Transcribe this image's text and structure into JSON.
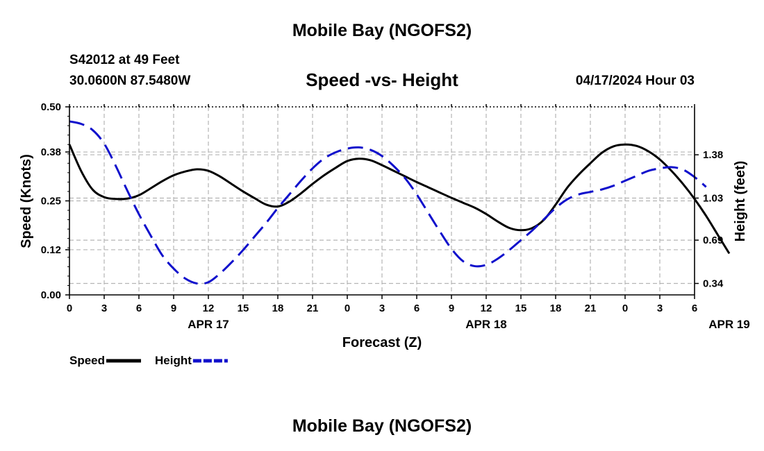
{
  "page": {
    "title": "Mobile Bay (NGOFS2)",
    "station": "S42012 at 49 Feet",
    "coordinates": "30.0600N  87.5480W",
    "datetime": "04/17/2024 Hour 03"
  },
  "chart_data": {
    "type": "line",
    "title": "Speed -vs- Height",
    "xlabel": "Forecast (Z)",
    "ylabel_left": "Speed (Knots)",
    "ylabel_right": "Height (feet)",
    "x_tick_labels": [
      "0",
      "3",
      "6",
      "9",
      "12",
      "15",
      "18",
      "21",
      "0",
      "3",
      "6",
      "9",
      "12",
      "15",
      "18",
      "21",
      "0",
      "3",
      "6"
    ],
    "date_labels": [
      {
        "label": "APR 17",
        "hour": 12
      },
      {
        "label": "APR 18",
        "hour": 36
      },
      {
        "label": "APR 19",
        "hour": 57
      }
    ],
    "x_range_hours": [
      0,
      54
    ],
    "ylim_left": [
      0,
      0.5
    ],
    "yticks_left": [
      "0.00",
      "0.12",
      "0.25",
      "0.38",
      "0.50"
    ],
    "ylim_right": [
      0.2475,
      1.7675
    ],
    "yticks_right": [
      "0.34",
      "0.69",
      "1.03",
      "1.38"
    ],
    "grid": true,
    "legend_position": "bottom-left",
    "series": [
      {
        "name": "Speed",
        "axis": "left",
        "color": "#000000",
        "style": "solid",
        "points": [
          [
            0,
            0.4
          ],
          [
            1,
            0.33
          ],
          [
            2,
            0.28
          ],
          [
            3,
            0.26
          ],
          [
            4,
            0.255
          ],
          [
            5,
            0.256
          ],
          [
            6,
            0.265
          ],
          [
            7,
            0.283
          ],
          [
            8,
            0.302
          ],
          [
            9,
            0.318
          ],
          [
            10,
            0.328
          ],
          [
            11,
            0.334
          ],
          [
            12,
            0.33
          ],
          [
            13,
            0.315
          ],
          [
            14,
            0.295
          ],
          [
            15,
            0.275
          ],
          [
            16,
            0.257
          ],
          [
            17,
            0.24
          ],
          [
            18,
            0.235
          ],
          [
            19,
            0.248
          ],
          [
            20,
            0.27
          ],
          [
            21,
            0.295
          ],
          [
            22,
            0.318
          ],
          [
            23,
            0.338
          ],
          [
            24,
            0.356
          ],
          [
            25,
            0.362
          ],
          [
            26,
            0.358
          ],
          [
            27,
            0.345
          ],
          [
            28,
            0.33
          ],
          [
            29,
            0.315
          ],
          [
            30,
            0.3
          ],
          [
            31,
            0.286
          ],
          [
            32,
            0.272
          ],
          [
            33,
            0.258
          ],
          [
            34,
            0.245
          ],
          [
            35,
            0.232
          ],
          [
            36,
            0.215
          ],
          [
            37,
            0.195
          ],
          [
            38,
            0.178
          ],
          [
            39,
            0.172
          ],
          [
            40,
            0.178
          ],
          [
            41,
            0.2
          ],
          [
            42,
            0.24
          ],
          [
            43,
            0.285
          ],
          [
            44,
            0.32
          ],
          [
            45,
            0.35
          ],
          [
            46,
            0.378
          ],
          [
            47,
            0.395
          ],
          [
            48,
            0.4
          ],
          [
            49,
            0.396
          ],
          [
            50,
            0.382
          ],
          [
            51,
            0.36
          ],
          [
            52,
            0.33
          ],
          [
            53,
            0.295
          ],
          [
            54,
            0.255
          ],
          [
            55,
            0.21
          ],
          [
            56,
            0.16
          ],
          [
            57,
            0.11
          ]
        ]
      },
      {
        "name": "Height",
        "axis": "right",
        "color": "#1010cc",
        "style": "dashed",
        "points": [
          [
            0,
            1.65
          ],
          [
            1,
            1.63
          ],
          [
            2,
            1.58
          ],
          [
            3,
            1.47
          ],
          [
            4,
            1.29
          ],
          [
            5,
            1.09
          ],
          [
            6,
            0.9
          ],
          [
            7,
            0.73
          ],
          [
            8,
            0.57
          ],
          [
            9,
            0.46
          ],
          [
            10,
            0.38
          ],
          [
            11,
            0.34
          ],
          [
            12,
            0.35
          ],
          [
            13,
            0.42
          ],
          [
            14,
            0.51
          ],
          [
            15,
            0.61
          ],
          [
            16,
            0.72
          ],
          [
            17,
            0.83
          ],
          [
            18,
            0.95
          ],
          [
            19,
            1.06
          ],
          [
            20,
            1.17
          ],
          [
            21,
            1.27
          ],
          [
            22,
            1.35
          ],
          [
            23,
            1.4
          ],
          [
            24,
            1.43
          ],
          [
            25,
            1.44
          ],
          [
            26,
            1.42
          ],
          [
            27,
            1.37
          ],
          [
            28,
            1.29
          ],
          [
            29,
            1.19
          ],
          [
            30,
            1.06
          ],
          [
            31,
            0.91
          ],
          [
            32,
            0.76
          ],
          [
            33,
            0.62
          ],
          [
            34,
            0.52
          ],
          [
            35,
            0.48
          ],
          [
            36,
            0.49
          ],
          [
            37,
            0.54
          ],
          [
            38,
            0.61
          ],
          [
            39,
            0.69
          ],
          [
            40,
            0.77
          ],
          [
            41,
            0.86
          ],
          [
            42,
            0.95
          ],
          [
            43,
            1.02
          ],
          [
            44,
            1.06
          ],
          [
            45,
            1.08
          ],
          [
            46,
            1.1
          ],
          [
            47,
            1.13
          ],
          [
            48,
            1.17
          ],
          [
            49,
            1.21
          ],
          [
            50,
            1.25
          ],
          [
            51,
            1.27
          ],
          [
            52,
            1.28
          ],
          [
            53,
            1.26
          ],
          [
            54,
            1.2
          ],
          [
            55,
            1.12
          ]
        ]
      }
    ]
  }
}
